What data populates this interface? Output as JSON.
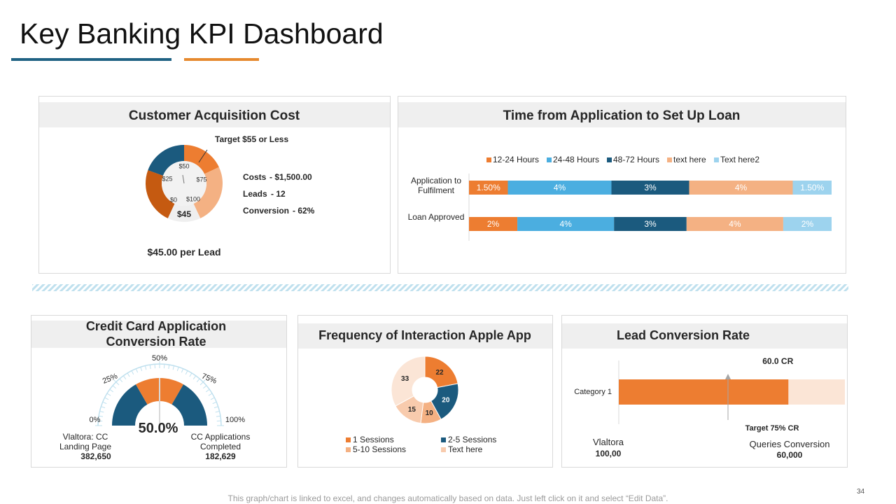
{
  "title": "Key Banking KPI Dashboard",
  "footer": "This graph/chart is linked to excel, and changes automatically based on data. Just left click on it and select “Edit Data”.",
  "page_number": "34",
  "cac": {
    "heading": "Customer Acquisition Cost",
    "target": "Target $55 or Less",
    "dial_labels": [
      "$0",
      "$25",
      "$50",
      "$75",
      "$100"
    ],
    "dial_value": "$45",
    "stats": [
      {
        "label": "Costs",
        "value": "- $1,500.00"
      },
      {
        "label": "Leads",
        "value": "- 12"
      },
      {
        "label": "Conversion",
        "value": "- 62%"
      }
    ],
    "per_lead": "$45.00 per Lead"
  },
  "chart_data": [
    {
      "type": "stacked_bar_100h",
      "title": "Time from Application to Set Up Loan",
      "categories": [
        "Application to Fulfilment",
        "Loan Approved"
      ],
      "series": [
        {
          "name": "12-24 Hours",
          "color": "#ED7D31",
          "values": [
            1.5,
            2
          ],
          "value_labels": [
            "1.50%",
            "2%"
          ]
        },
        {
          "name": "24-48 Hours",
          "color": "#4BAEE0",
          "values": [
            4,
            4
          ],
          "value_labels": [
            "4%",
            "4%"
          ]
        },
        {
          "name": "48-72 Hours",
          "color": "#1B5A7E",
          "values": [
            3,
            3
          ],
          "value_labels": [
            "3%",
            "3%"
          ]
        },
        {
          "name": "text here",
          "color": "#F4B183",
          "values": [
            4,
            4
          ],
          "value_labels": [
            "4%",
            "4%"
          ]
        },
        {
          "name": "Text here2",
          "color": "#9DD3EE",
          "values": [
            1.5,
            2
          ],
          "value_labels": [
            "1.50%",
            "2%"
          ]
        }
      ]
    },
    {
      "type": "gauge",
      "title": "Credit Card Application Conversion Rate",
      "value": 50,
      "value_label": "50.0%",
      "ylim": [
        0,
        100
      ],
      "yticks": [
        {
          "value": 0,
          "label": "0%"
        },
        {
          "value": 25,
          "label": "25%"
        },
        {
          "value": 50,
          "label": "50%"
        },
        {
          "value": 75,
          "label": "75%"
        },
        {
          "value": 100,
          "label": "100%"
        }
      ],
      "band_colors": [
        "#1B5A7E",
        "#ED7D31",
        "#1B5A7E"
      ],
      "left_label": "Vlaltora: CC Landing Page",
      "left_value": "382,650",
      "right_label": "CC Applications Completed",
      "right_value": "182,629"
    },
    {
      "type": "donut",
      "title": "Frequency of Interaction Apple App",
      "categories": [
        "1 Sessions",
        "2-5 Sessions",
        "5-10 Sessions",
        "Text here",
        null
      ],
      "values": [
        22,
        20,
        10,
        15,
        33
      ],
      "colors": [
        "#ED7D31",
        "#1B5A7E",
        "#F4B183",
        "#F8CBAD",
        "#FBE5D6"
      ]
    },
    {
      "type": "bar_h",
      "title": "Lead Conversion Rate",
      "categories": [
        "Category 1"
      ],
      "values": [
        60
      ],
      "value_labels": [
        "60.0 CR"
      ],
      "xlim": [
        0,
        80
      ],
      "color": "#ED7D31",
      "track_color": "#FBE5D6",
      "target_label": "Target 75% CR",
      "left_label": "Vlaltora",
      "left_value": "100,00",
      "right_label": "Queries Conversion",
      "right_value": "60,000"
    }
  ]
}
